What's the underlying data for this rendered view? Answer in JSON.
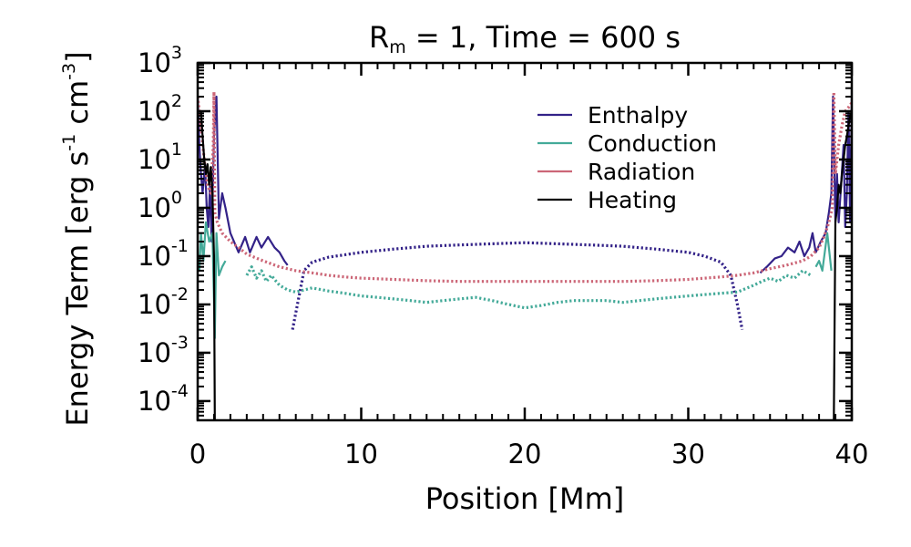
{
  "chart_data": {
    "type": "line",
    "title": {
      "main": "R",
      "sub": "m",
      "rest": " = 1, Time = 600 s"
    },
    "xlabel": "Position [Mm]",
    "ylabel": {
      "prefix": "Energy Term [erg s",
      "exp1": "-1",
      "mid": " cm",
      "exp2": "-3",
      "suffix": "]"
    },
    "xlim": [
      0,
      40
    ],
    "ylim": [
      4e-05,
      1000
    ],
    "yscale": "log",
    "x_ticks": [
      0,
      10,
      20,
      30,
      40
    ],
    "x_tick_labels": [
      "0",
      "10",
      "20",
      "30",
      "40"
    ],
    "y_ticks": [
      {
        "base": "10",
        "exp": "3",
        "value": 1000
      },
      {
        "base": "10",
        "exp": "2",
        "value": 100
      },
      {
        "base": "10",
        "exp": "1",
        "value": 10
      },
      {
        "base": "10",
        "exp": "0",
        "value": 1
      },
      {
        "base": "10",
        "exp": "-1",
        "value": 0.1
      },
      {
        "base": "10",
        "exp": "-2",
        "value": 0.01
      },
      {
        "base": "10",
        "exp": "-3",
        "value": 0.001
      },
      {
        "base": "10",
        "exp": "-4",
        "value": 0.0001
      }
    ],
    "legend_position": "top-right",
    "line_style_note": "solid segments are positive values, dotted segments are absolute values of negative terms",
    "series": [
      {
        "name": "Enthalpy",
        "color": "#332288",
        "segments": [
          {
            "style": "solid",
            "x": [
              0,
              0.1,
              0.2,
              0.3,
              0.45,
              0.55,
              0.65,
              0.75,
              0.85,
              1.0,
              1.15,
              1.3,
              1.5,
              1.7,
              2.0,
              2.5,
              2.9,
              3.2,
              3.6,
              3.9,
              4.3,
              4.7,
              5.0,
              5.3,
              5.5
            ],
            "y": [
              200,
              20,
              5,
              2,
              8,
              1,
              0.4,
              3,
              0.2,
              30,
              200,
              0.6,
              2,
              1,
              0.3,
              0.12,
              0.25,
              0.12,
              0.25,
              0.15,
              0.25,
              0.15,
              0.12,
              0.08,
              0.065
            ]
          },
          {
            "style": "dotted",
            "x": [
              5.8,
              6.1,
              6.5,
              7.0,
              8.0,
              10.0,
              12.0,
              14.0,
              16.0,
              18.0,
              20.0,
              22.0,
              24.0,
              26.0,
              28.0,
              30.0,
              31.0,
              32.0,
              32.6,
              33.0,
              33.3
            ],
            "y": [
              0.003,
              0.01,
              0.05,
              0.075,
              0.095,
              0.12,
              0.14,
              0.16,
              0.17,
              0.18,
              0.19,
              0.18,
              0.17,
              0.16,
              0.14,
              0.12,
              0.1,
              0.075,
              0.04,
              0.01,
              0.003
            ]
          },
          {
            "style": "solid",
            "x": [
              34.4,
              34.8,
              35.3,
              35.7,
              36.1,
              36.5,
              36.8,
              37.1,
              37.4,
              37.6,
              37.8,
              38.1,
              38.4,
              38.6,
              38.75,
              38.85,
              39.0,
              39.1,
              39.2,
              39.35,
              39.5,
              39.6,
              39.7,
              39.8,
              39.9,
              40.0
            ],
            "y": [
              0.045,
              0.06,
              0.09,
              0.1,
              0.15,
              0.12,
              0.2,
              0.1,
              0.15,
              0.3,
              0.12,
              0.2,
              0.3,
              0.8,
              2,
              200,
              0.5,
              5,
              0.5,
              3,
              20,
              0.4,
              2,
              100,
              0.5,
              200
            ]
          }
        ]
      },
      {
        "name": "Conduction",
        "color": "#44AA99",
        "segments": [
          {
            "style": "solid",
            "x": [
              0.1,
              0.2,
              0.35,
              0.5,
              0.7,
              0.9,
              1.05,
              1.15,
              1.3,
              1.5,
              1.7
            ],
            "y": [
              0.05,
              0.3,
              0.08,
              0.5,
              0.2,
              0.3,
              0.002,
              0.3,
              0.04,
              0.06,
              0.08
            ]
          },
          {
            "style": "dotted",
            "x": [
              3.0,
              3.3,
              3.6,
              3.9,
              4.2,
              4.5,
              4.8,
              5.0,
              5.5,
              6.0,
              7.0,
              8.0,
              9.0,
              10.0,
              11.0,
              12.0,
              13.0,
              14.0,
              15.0,
              16.0,
              17.0,
              18.0,
              19.0,
              20.0,
              21.0,
              22.0,
              23.0,
              24.0,
              25.0,
              26.0,
              27.0,
              28.0,
              29.0,
              30.0,
              31.0,
              32.0,
              33.0,
              34.0,
              34.5,
              35.0,
              35.5,
              36.0,
              36.5,
              37.0,
              37.5
            ],
            "y": [
              0.04,
              0.06,
              0.035,
              0.05,
              0.03,
              0.04,
              0.03,
              0.025,
              0.02,
              0.018,
              0.022,
              0.019,
              0.017,
              0.015,
              0.014,
              0.013,
              0.012,
              0.011,
              0.012,
              0.013,
              0.014,
              0.012,
              0.01,
              0.0085,
              0.0095,
              0.011,
              0.012,
              0.012,
              0.012,
              0.011,
              0.012,
              0.013,
              0.014,
              0.015,
              0.016,
              0.017,
              0.018,
              0.025,
              0.03,
              0.035,
              0.03,
              0.04,
              0.035,
              0.05,
              0.04
            ]
          },
          {
            "style": "solid",
            "x": [
              37.8,
              38.0,
              38.2,
              38.5,
              38.75
            ],
            "y": [
              0.06,
              0.08,
              0.05,
              0.3,
              0.05
            ]
          }
        ]
      },
      {
        "name": "Radiation",
        "color": "#CC6677",
        "segments": [
          {
            "style": "dotted",
            "x": [
              0,
              0.2,
              0.4,
              0.6,
              0.8,
              0.95,
              1.0,
              1.05,
              1.2,
              1.5,
              2.0,
              2.5,
              3.0,
              4.0,
              5.0,
              6.0,
              7.0,
              8.0,
              9.0,
              10.0,
              12.0,
              14.0,
              16.0,
              18.0,
              20.0,
              22.0,
              24.0,
              26.0,
              28.0,
              30.0,
              31.0,
              32.0,
              33.0,
              34.0,
              35.0,
              36.0,
              37.0,
              37.5,
              38.0,
              38.3,
              38.6,
              38.8,
              38.9,
              39.0,
              39.2,
              39.4,
              39.6,
              39.8,
              40.0
            ],
            "y": [
              200,
              50,
              10,
              3,
              2,
              20,
              250,
              0.8,
              0.5,
              0.3,
              0.2,
              0.15,
              0.11,
              0.08,
              0.06,
              0.05,
              0.045,
              0.04,
              0.037,
              0.035,
              0.033,
              0.031,
              0.03,
              0.03,
              0.03,
              0.03,
              0.03,
              0.03,
              0.031,
              0.033,
              0.035,
              0.037,
              0.04,
              0.045,
              0.055,
              0.065,
              0.08,
              0.1,
              0.15,
              0.25,
              0.5,
              1.0,
              250,
              5,
              20,
              50,
              100,
              120,
              150
            ]
          }
        ]
      },
      {
        "name": "Heating",
        "color": "#000000",
        "segments": [
          {
            "style": "solid",
            "x": [
              0.2,
              0.3,
              0.4,
              0.5,
              0.6,
              0.7,
              0.8,
              0.9,
              1.0,
              1.05,
              1.1,
              1.15,
              1.2
            ],
            "y": [
              100,
              30,
              10,
              5,
              8,
              3,
              7,
              2,
              0.1,
              3e-05,
              3e-05,
              3e-05,
              3e-05
            ]
          },
          {
            "style": "solid",
            "x": [
              38.8,
              38.85,
              38.9,
              39.0,
              39.1,
              39.2,
              39.3,
              39.4,
              39.5,
              39.6,
              39.7,
              39.8,
              39.9,
              40.0
            ],
            "y": [
              3e-05,
              3e-05,
              3e-05,
              0.5,
              1,
              3,
              2,
              5,
              10,
              20,
              30,
              50,
              80,
              100
            ]
          }
        ]
      }
    ]
  }
}
